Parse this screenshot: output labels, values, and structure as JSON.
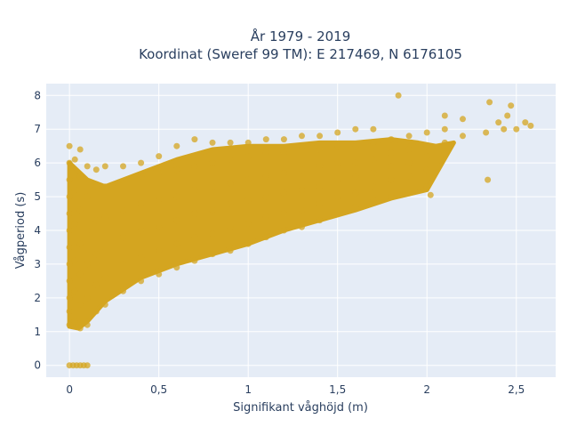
{
  "chart_data": {
    "type": "scatter",
    "title": "År 1979 - 2019",
    "subtitle": "Koordinat (Sweref 99 TM): E 217469, N 6176105",
    "xlabel": "Signifikant våghöjd (m)",
    "ylabel": "Vågperiod (s)",
    "xlim": [
      -0.13,
      2.72
    ],
    "ylim": [
      -0.35,
      8.35
    ],
    "x_ticks": [
      0,
      0.5,
      1,
      1.5,
      2,
      2.5
    ],
    "x_tick_labels": [
      "0",
      "0,5",
      "1",
      "1,5",
      "2",
      "2,5"
    ],
    "y_ticks": [
      0,
      1,
      2,
      3,
      4,
      5,
      6,
      7,
      8
    ],
    "y_tick_labels": [
      "0",
      "1",
      "2",
      "3",
      "4",
      "5",
      "6",
      "7",
      "8"
    ],
    "grid": true,
    "legend": false,
    "marker_color": "#D4A520",
    "plot_background": "#E5ECF6",
    "points": [
      [
        0.0,
        0.0
      ],
      [
        0.02,
        0.0
      ],
      [
        0.04,
        0.0
      ],
      [
        0.06,
        0.0
      ],
      [
        0.08,
        0.0
      ],
      [
        0.1,
        0.0
      ],
      [
        0.0,
        1.2
      ],
      [
        0.0,
        1.6
      ],
      [
        0.0,
        2.0
      ],
      [
        0.0,
        2.5
      ],
      [
        0.0,
        3.0
      ],
      [
        0.0,
        3.5
      ],
      [
        0.0,
        4.0
      ],
      [
        0.0,
        4.5
      ],
      [
        0.0,
        5.0
      ],
      [
        0.0,
        5.5
      ],
      [
        0.0,
        6.0
      ],
      [
        0.0,
        6.5
      ],
      [
        0.03,
        1.3
      ],
      [
        0.03,
        2.2
      ],
      [
        0.03,
        3.1
      ],
      [
        0.03,
        4.2
      ],
      [
        0.03,
        5.2
      ],
      [
        0.03,
        6.1
      ],
      [
        0.06,
        1.1
      ],
      [
        0.06,
        1.8
      ],
      [
        0.06,
        2.7
      ],
      [
        0.06,
        3.6
      ],
      [
        0.06,
        4.6
      ],
      [
        0.06,
        5.6
      ],
      [
        0.06,
        6.4
      ],
      [
        0.1,
        1.2
      ],
      [
        0.1,
        2.0
      ],
      [
        0.1,
        3.0
      ],
      [
        0.1,
        4.0
      ],
      [
        0.1,
        5.0
      ],
      [
        0.1,
        5.9
      ],
      [
        0.15,
        1.6
      ],
      [
        0.15,
        2.4
      ],
      [
        0.15,
        3.3
      ],
      [
        0.15,
        4.3
      ],
      [
        0.15,
        5.3
      ],
      [
        0.15,
        5.8
      ],
      [
        0.2,
        1.8
      ],
      [
        0.2,
        2.6
      ],
      [
        0.2,
        3.5
      ],
      [
        0.2,
        4.4
      ],
      [
        0.2,
        5.3
      ],
      [
        0.2,
        5.9
      ],
      [
        0.3,
        2.2
      ],
      [
        0.3,
        3.0
      ],
      [
        0.3,
        3.8
      ],
      [
        0.3,
        4.6
      ],
      [
        0.3,
        5.4
      ],
      [
        0.3,
        5.9
      ],
      [
        0.4,
        2.5
      ],
      [
        0.4,
        3.2
      ],
      [
        0.4,
        4.0
      ],
      [
        0.4,
        4.8
      ],
      [
        0.4,
        5.6
      ],
      [
        0.4,
        6.0
      ],
      [
        0.5,
        2.7
      ],
      [
        0.5,
        3.4
      ],
      [
        0.5,
        4.1
      ],
      [
        0.5,
        4.9
      ],
      [
        0.5,
        5.7
      ],
      [
        0.5,
        6.2
      ],
      [
        0.6,
        2.9
      ],
      [
        0.6,
        3.6
      ],
      [
        0.6,
        4.3
      ],
      [
        0.6,
        5.0
      ],
      [
        0.6,
        5.8
      ],
      [
        0.6,
        6.5
      ],
      [
        0.7,
        3.1
      ],
      [
        0.7,
        3.8
      ],
      [
        0.7,
        4.5
      ],
      [
        0.7,
        5.2
      ],
      [
        0.7,
        5.9
      ],
      [
        0.7,
        6.7
      ],
      [
        0.8,
        3.3
      ],
      [
        0.8,
        3.9
      ],
      [
        0.8,
        4.6
      ],
      [
        0.8,
        5.3
      ],
      [
        0.8,
        6.0
      ],
      [
        0.8,
        6.6
      ],
      [
        0.9,
        3.4
      ],
      [
        0.9,
        4.1
      ],
      [
        0.9,
        4.8
      ],
      [
        0.9,
        5.4
      ],
      [
        0.9,
        6.1
      ],
      [
        0.9,
        6.6
      ],
      [
        1.0,
        3.6
      ],
      [
        1.0,
        4.2
      ],
      [
        1.0,
        4.9
      ],
      [
        1.0,
        5.5
      ],
      [
        1.0,
        6.2
      ],
      [
        1.0,
        6.6
      ],
      [
        1.1,
        3.8
      ],
      [
        1.1,
        4.4
      ],
      [
        1.1,
        5.0
      ],
      [
        1.1,
        5.6
      ],
      [
        1.1,
        6.3
      ],
      [
        1.1,
        6.7
      ],
      [
        1.2,
        4.0
      ],
      [
        1.2,
        4.5
      ],
      [
        1.2,
        5.1
      ],
      [
        1.2,
        5.7
      ],
      [
        1.2,
        6.3
      ],
      [
        1.2,
        6.7
      ],
      [
        1.3,
        4.1
      ],
      [
        1.3,
        4.6
      ],
      [
        1.3,
        5.2
      ],
      [
        1.3,
        5.8
      ],
      [
        1.3,
        6.4
      ],
      [
        1.3,
        6.8
      ],
      [
        1.4,
        4.3
      ],
      [
        1.4,
        4.8
      ],
      [
        1.4,
        5.3
      ],
      [
        1.4,
        5.9
      ],
      [
        1.4,
        6.4
      ],
      [
        1.4,
        6.8
      ],
      [
        1.5,
        4.5
      ],
      [
        1.5,
        5.0
      ],
      [
        1.5,
        5.5
      ],
      [
        1.5,
        6.0
      ],
      [
        1.5,
        6.5
      ],
      [
        1.5,
        6.9
      ],
      [
        1.6,
        4.7
      ],
      [
        1.6,
        5.1
      ],
      [
        1.6,
        5.6
      ],
      [
        1.6,
        6.0
      ],
      [
        1.6,
        6.5
      ],
      [
        1.6,
        7.0
      ],
      [
        1.7,
        4.9
      ],
      [
        1.7,
        5.3
      ],
      [
        1.7,
        5.7
      ],
      [
        1.7,
        6.1
      ],
      [
        1.7,
        6.6
      ],
      [
        1.7,
        7.0
      ],
      [
        1.8,
        5.0
      ],
      [
        1.8,
        5.5
      ],
      [
        1.8,
        5.9
      ],
      [
        1.8,
        6.3
      ],
      [
        1.8,
        6.7
      ],
      [
        1.84,
        8.0
      ],
      [
        1.9,
        5.1
      ],
      [
        1.9,
        5.6
      ],
      [
        1.9,
        6.0
      ],
      [
        1.9,
        6.4
      ],
      [
        1.9,
        6.8
      ],
      [
        2.0,
        5.3
      ],
      [
        2.0,
        5.8
      ],
      [
        2.0,
        6.2
      ],
      [
        2.0,
        6.5
      ],
      [
        2.0,
        6.9
      ],
      [
        2.02,
        5.05
      ],
      [
        2.1,
        6.3
      ],
      [
        2.1,
        6.6
      ],
      [
        2.1,
        7.0
      ],
      [
        2.1,
        7.4
      ],
      [
        2.2,
        7.3
      ],
      [
        2.2,
        6.8
      ],
      [
        2.33,
        6.9
      ],
      [
        2.34,
        5.5
      ],
      [
        2.35,
        7.8
      ],
      [
        2.4,
        7.2
      ],
      [
        2.43,
        7.0
      ],
      [
        2.45,
        7.4
      ],
      [
        2.47,
        7.7
      ],
      [
        2.5,
        7.0
      ],
      [
        2.55,
        7.2
      ],
      [
        2.58,
        7.1
      ]
    ]
  }
}
